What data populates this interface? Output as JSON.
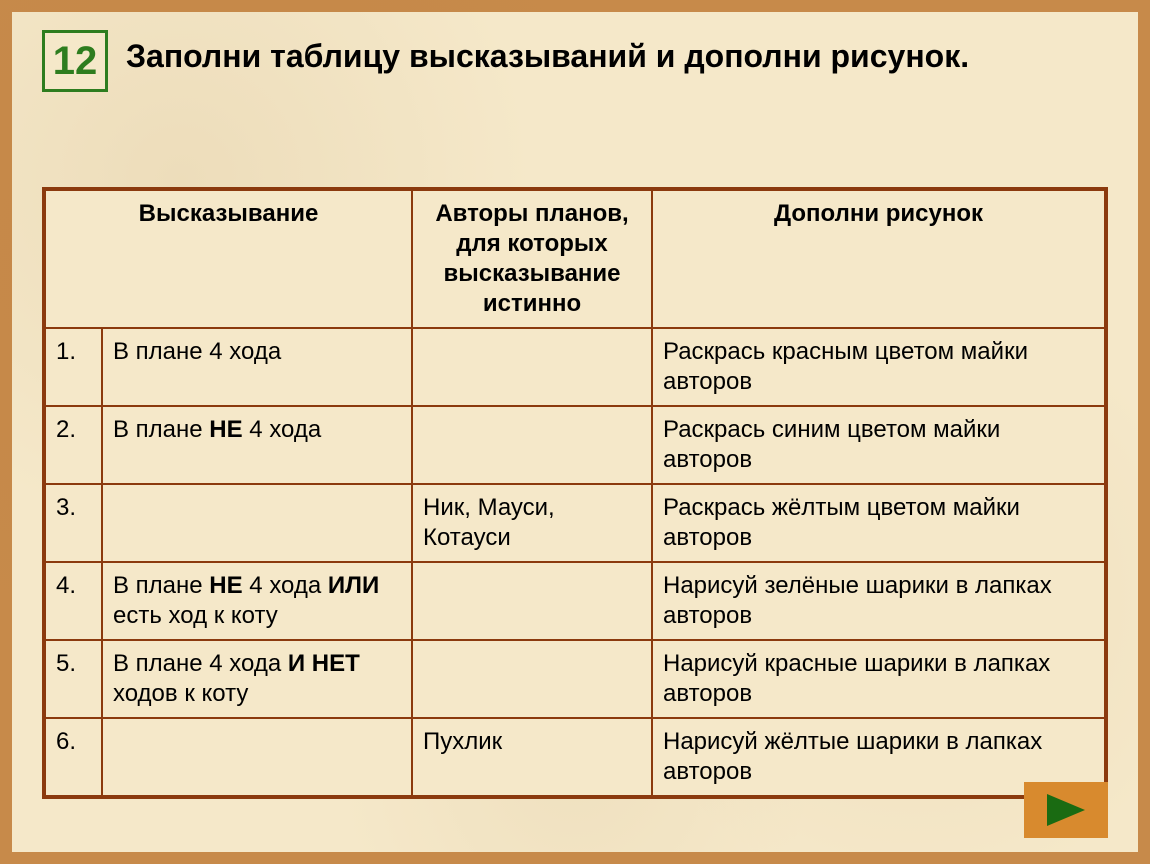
{
  "task": {
    "number": "12",
    "title": "Заполни таблицу высказываний и дополни рисунок."
  },
  "table": {
    "headers": {
      "statement": "Высказывание",
      "authors": "Авторы планов, для которых высказывание истинно",
      "picture": "Дополни рисунок"
    },
    "rows": [
      {
        "n": "1.",
        "stmt_html": "В плане 4 хода",
        "auth": "",
        "pic": "Раскрась красным цветом майки авторов"
      },
      {
        "n": "2.",
        "stmt_html": "В плане <b>НЕ</b> 4 хода",
        "auth": "",
        "pic": "Раскрась синим цветом майки авторов"
      },
      {
        "n": "3.",
        "stmt_html": "",
        "auth": "Ник, Мауси, Котауси",
        "pic": "Раскрась жёлтым цветом майки авторов"
      },
      {
        "n": "4.",
        "stmt_html": "В плане <b>НЕ</b> 4 хода <b>ИЛИ</b> есть ход к коту",
        "auth": "",
        "pic": "Нарисуй зелёные шарики в лапках авторов"
      },
      {
        "n": "5.",
        "stmt_html": "В плане 4 хода <b>И НЕТ</b> ходов к коту",
        "auth": "",
        "pic": "Нарисуй красные шарики в лапках авторов"
      },
      {
        "n": "6.",
        "stmt_html": "",
        "auth": "Пухлик",
        "pic": "Нарисуй жёлтые шарики в лапках авторов"
      }
    ]
  },
  "colors": {
    "slide_bg": "#f5e8c9",
    "frame_bg": "#c78a4a",
    "table_border": "#8b3a0e",
    "task_num_border": "#2e7d1f",
    "nav_btn_bg": "#d88a2e",
    "nav_arrow": "#1a6b12"
  }
}
